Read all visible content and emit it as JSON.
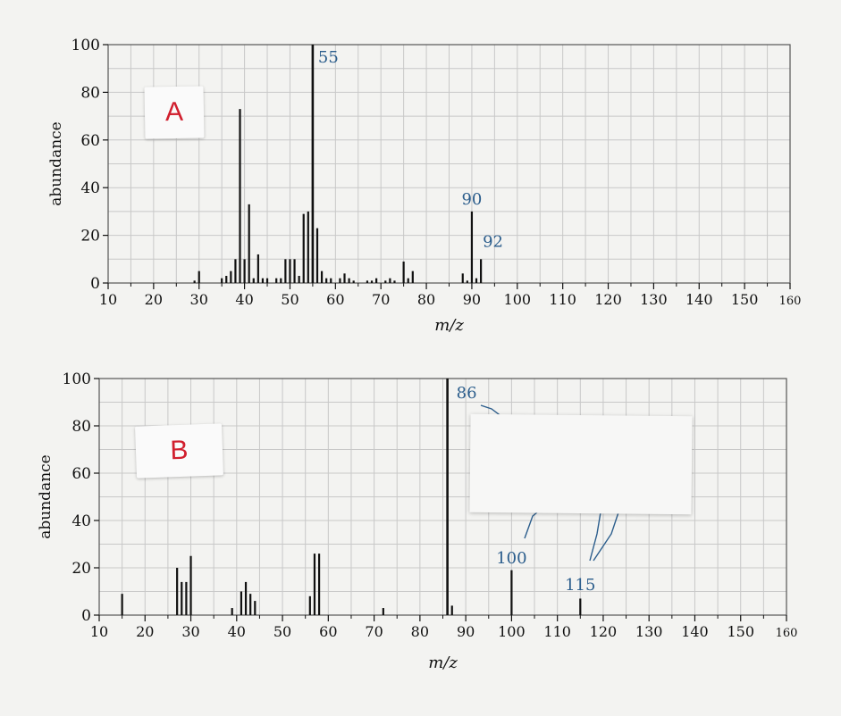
{
  "labels": {
    "a": "A",
    "b": "B"
  },
  "colors": {
    "ink": "#111111",
    "annotation": "#2b5d8c",
    "grid": "#c8c8c8",
    "label": "#d11f2e"
  },
  "chart_data": [
    {
      "type": "bar",
      "panel": "A",
      "title": "",
      "xlabel": "m/z",
      "ylabel": "abundance",
      "xlim": [
        10,
        160
      ],
      "ylim": [
        0,
        100
      ],
      "xticks": [
        10,
        20,
        30,
        40,
        50,
        60,
        70,
        80,
        90,
        100,
        110,
        120,
        130,
        140,
        150,
        160
      ],
      "yticks": [
        0,
        20,
        40,
        60,
        80,
        100
      ],
      "grid": true,
      "x": [
        29,
        30,
        35,
        36,
        37,
        38,
        39,
        40,
        41,
        42,
        43,
        44,
        45,
        47,
        48,
        49,
        50,
        51,
        52,
        53,
        54,
        55,
        56,
        57,
        58,
        59,
        61,
        62,
        63,
        64,
        67,
        68,
        69,
        71,
        72,
        73,
        75,
        76,
        77,
        88,
        89,
        90,
        91,
        92
      ],
      "values": [
        1,
        5,
        2,
        3,
        5,
        10,
        73,
        10,
        33,
        2,
        12,
        2,
        2,
        2,
        2,
        10,
        10,
        10,
        3,
        29,
        30,
        100,
        23,
        5,
        2,
        2,
        2,
        4,
        2,
        1,
        1,
        1,
        2,
        1,
        2,
        1,
        9,
        2,
        5,
        4,
        1,
        30,
        2,
        10
      ],
      "annotations": [
        {
          "text": "55",
          "x": 55,
          "y": 100
        },
        {
          "text": "90",
          "x": 90,
          "y": 30
        },
        {
          "text": "92",
          "x": 92,
          "y": 10
        }
      ]
    },
    {
      "type": "bar",
      "panel": "B",
      "title": "",
      "xlabel": "m/z",
      "ylabel": "abundance",
      "xlim": [
        10,
        160
      ],
      "ylim": [
        0,
        100
      ],
      "xticks": [
        10,
        20,
        30,
        40,
        50,
        60,
        70,
        80,
        90,
        100,
        110,
        120,
        130,
        140,
        150,
        160
      ],
      "yticks": [
        0,
        20,
        40,
        60,
        80,
        100
      ],
      "grid": true,
      "x": [
        15,
        27,
        28,
        29,
        30,
        39,
        41,
        42,
        43,
        44,
        56,
        57,
        58,
        72,
        86,
        87,
        100,
        115
      ],
      "values": [
        9,
        20,
        14,
        14,
        25,
        3,
        10,
        14,
        9,
        6,
        8,
        26,
        26,
        3,
        100,
        4,
        19,
        7
      ],
      "annotations": [
        {
          "text": "86",
          "x": 86,
          "y": 100
        },
        {
          "text": "100",
          "x": 100,
          "y": 19
        },
        {
          "text": "115",
          "x": 115,
          "y": 7
        }
      ]
    }
  ]
}
